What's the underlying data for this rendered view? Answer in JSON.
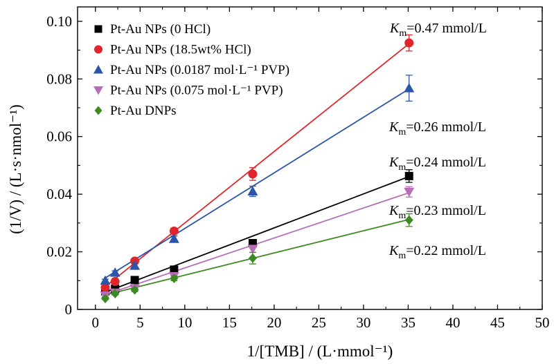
{
  "chart_data": {
    "type": "scatter",
    "xlabel": "1/[TMB] / (L·mmol⁻¹)",
    "ylabel": "(1/V) / (L·s·nmol⁻¹)",
    "xlim": [
      -2,
      50
    ],
    "ylim": [
      0,
      0.105
    ],
    "x_ticks": [
      0,
      5,
      10,
      15,
      20,
      25,
      30,
      35,
      40,
      45,
      50
    ],
    "y_ticks": [
      0,
      0.02,
      0.04,
      0.06,
      0.08,
      0.1
    ],
    "y_tick_labels": [
      "0",
      "0.02",
      "0.04",
      "0.06",
      "0.08",
      "0.10"
    ],
    "grid": false,
    "legend_position": "top-left",
    "series": [
      {
        "name": "Pt-Au NPs (0 HCl)",
        "color": "#000000",
        "marker": "square",
        "x": [
          1.1,
          2.2,
          4.4,
          8.8,
          17.6,
          35.1
        ],
        "y": [
          0.0063,
          0.0072,
          0.0102,
          0.0138,
          0.023,
          0.0463
        ],
        "err": [
          0.0005,
          0.0005,
          0.0006,
          0.0008,
          0.0012,
          0.0022
        ],
        "fit": [
          0.0047,
          0.00118
        ]
      },
      {
        "name": "Pt-Au NPs (18.5wt% HCl)",
        "color": "#e0262b",
        "marker": "circle",
        "x": [
          1.1,
          2.2,
          4.4,
          8.8,
          17.6,
          35.1
        ],
        "y": [
          0.0076,
          0.0097,
          0.0168,
          0.0272,
          0.047,
          0.0925
        ],
        "err": [
          0.0005,
          0.0006,
          0.0008,
          0.001,
          0.0022,
          0.0028
        ],
        "fit": [
          0.0052,
          0.00248
        ]
      },
      {
        "name": "Pt-Au NPs (0.0187 mol·L⁻¹ PVP)",
        "color": "#2a55a8",
        "marker": "triangle-up",
        "x": [
          1.1,
          2.2,
          4.4,
          8.8,
          17.6,
          35.1
        ],
        "y": [
          0.01,
          0.0128,
          0.0152,
          0.0245,
          0.041,
          0.0768
        ],
        "err": [
          0.0005,
          0.0006,
          0.0008,
          0.001,
          0.0018,
          0.0045
        ],
        "fit": [
          0.0088,
          0.00193
        ]
      },
      {
        "name": "Pt-Au NPs (0.075 mol·L⁻¹ PVP)",
        "color": "#b86db8",
        "marker": "triangle-down",
        "x": [
          1.1,
          2.2,
          4.4,
          8.8,
          17.6,
          35.1
        ],
        "y": [
          0.0048,
          0.0058,
          0.0072,
          0.0115,
          0.021,
          0.0408
        ],
        "err": [
          0.0004,
          0.0005,
          0.0006,
          0.0008,
          0.0012,
          0.0018
        ],
        "fit": [
          0.004,
          0.00104
        ]
      },
      {
        "name": "Pt-Au DNPs",
        "color": "#3e8a22",
        "marker": "diamond",
        "x": [
          1.1,
          2.2,
          4.4,
          8.8,
          17.6,
          35.1
        ],
        "y": [
          0.0038,
          0.0055,
          0.0068,
          0.0108,
          0.0178,
          0.031
        ],
        "err": [
          0.0004,
          0.0005,
          0.0006,
          0.0008,
          0.002,
          0.0022
        ],
        "fit": [
          0.0042,
          0.00077
        ]
      }
    ],
    "annotations": [
      {
        "id": "km1",
        "prefix": "K",
        "sub": "m",
        "value": "=0.47 mmol/L"
      },
      {
        "id": "km2",
        "prefix": "K",
        "sub": "m",
        "value": "=0.26 mmol/L"
      },
      {
        "id": "km3",
        "prefix": "K",
        "sub": "m",
        "value": "=0.24 mmol/L"
      },
      {
        "id": "km4",
        "prefix": "K",
        "sub": "m",
        "value": "=0.23 mmol/L"
      },
      {
        "id": "km5",
        "prefix": "K",
        "sub": "m",
        "value": "=0.22 mmol/L"
      }
    ]
  }
}
